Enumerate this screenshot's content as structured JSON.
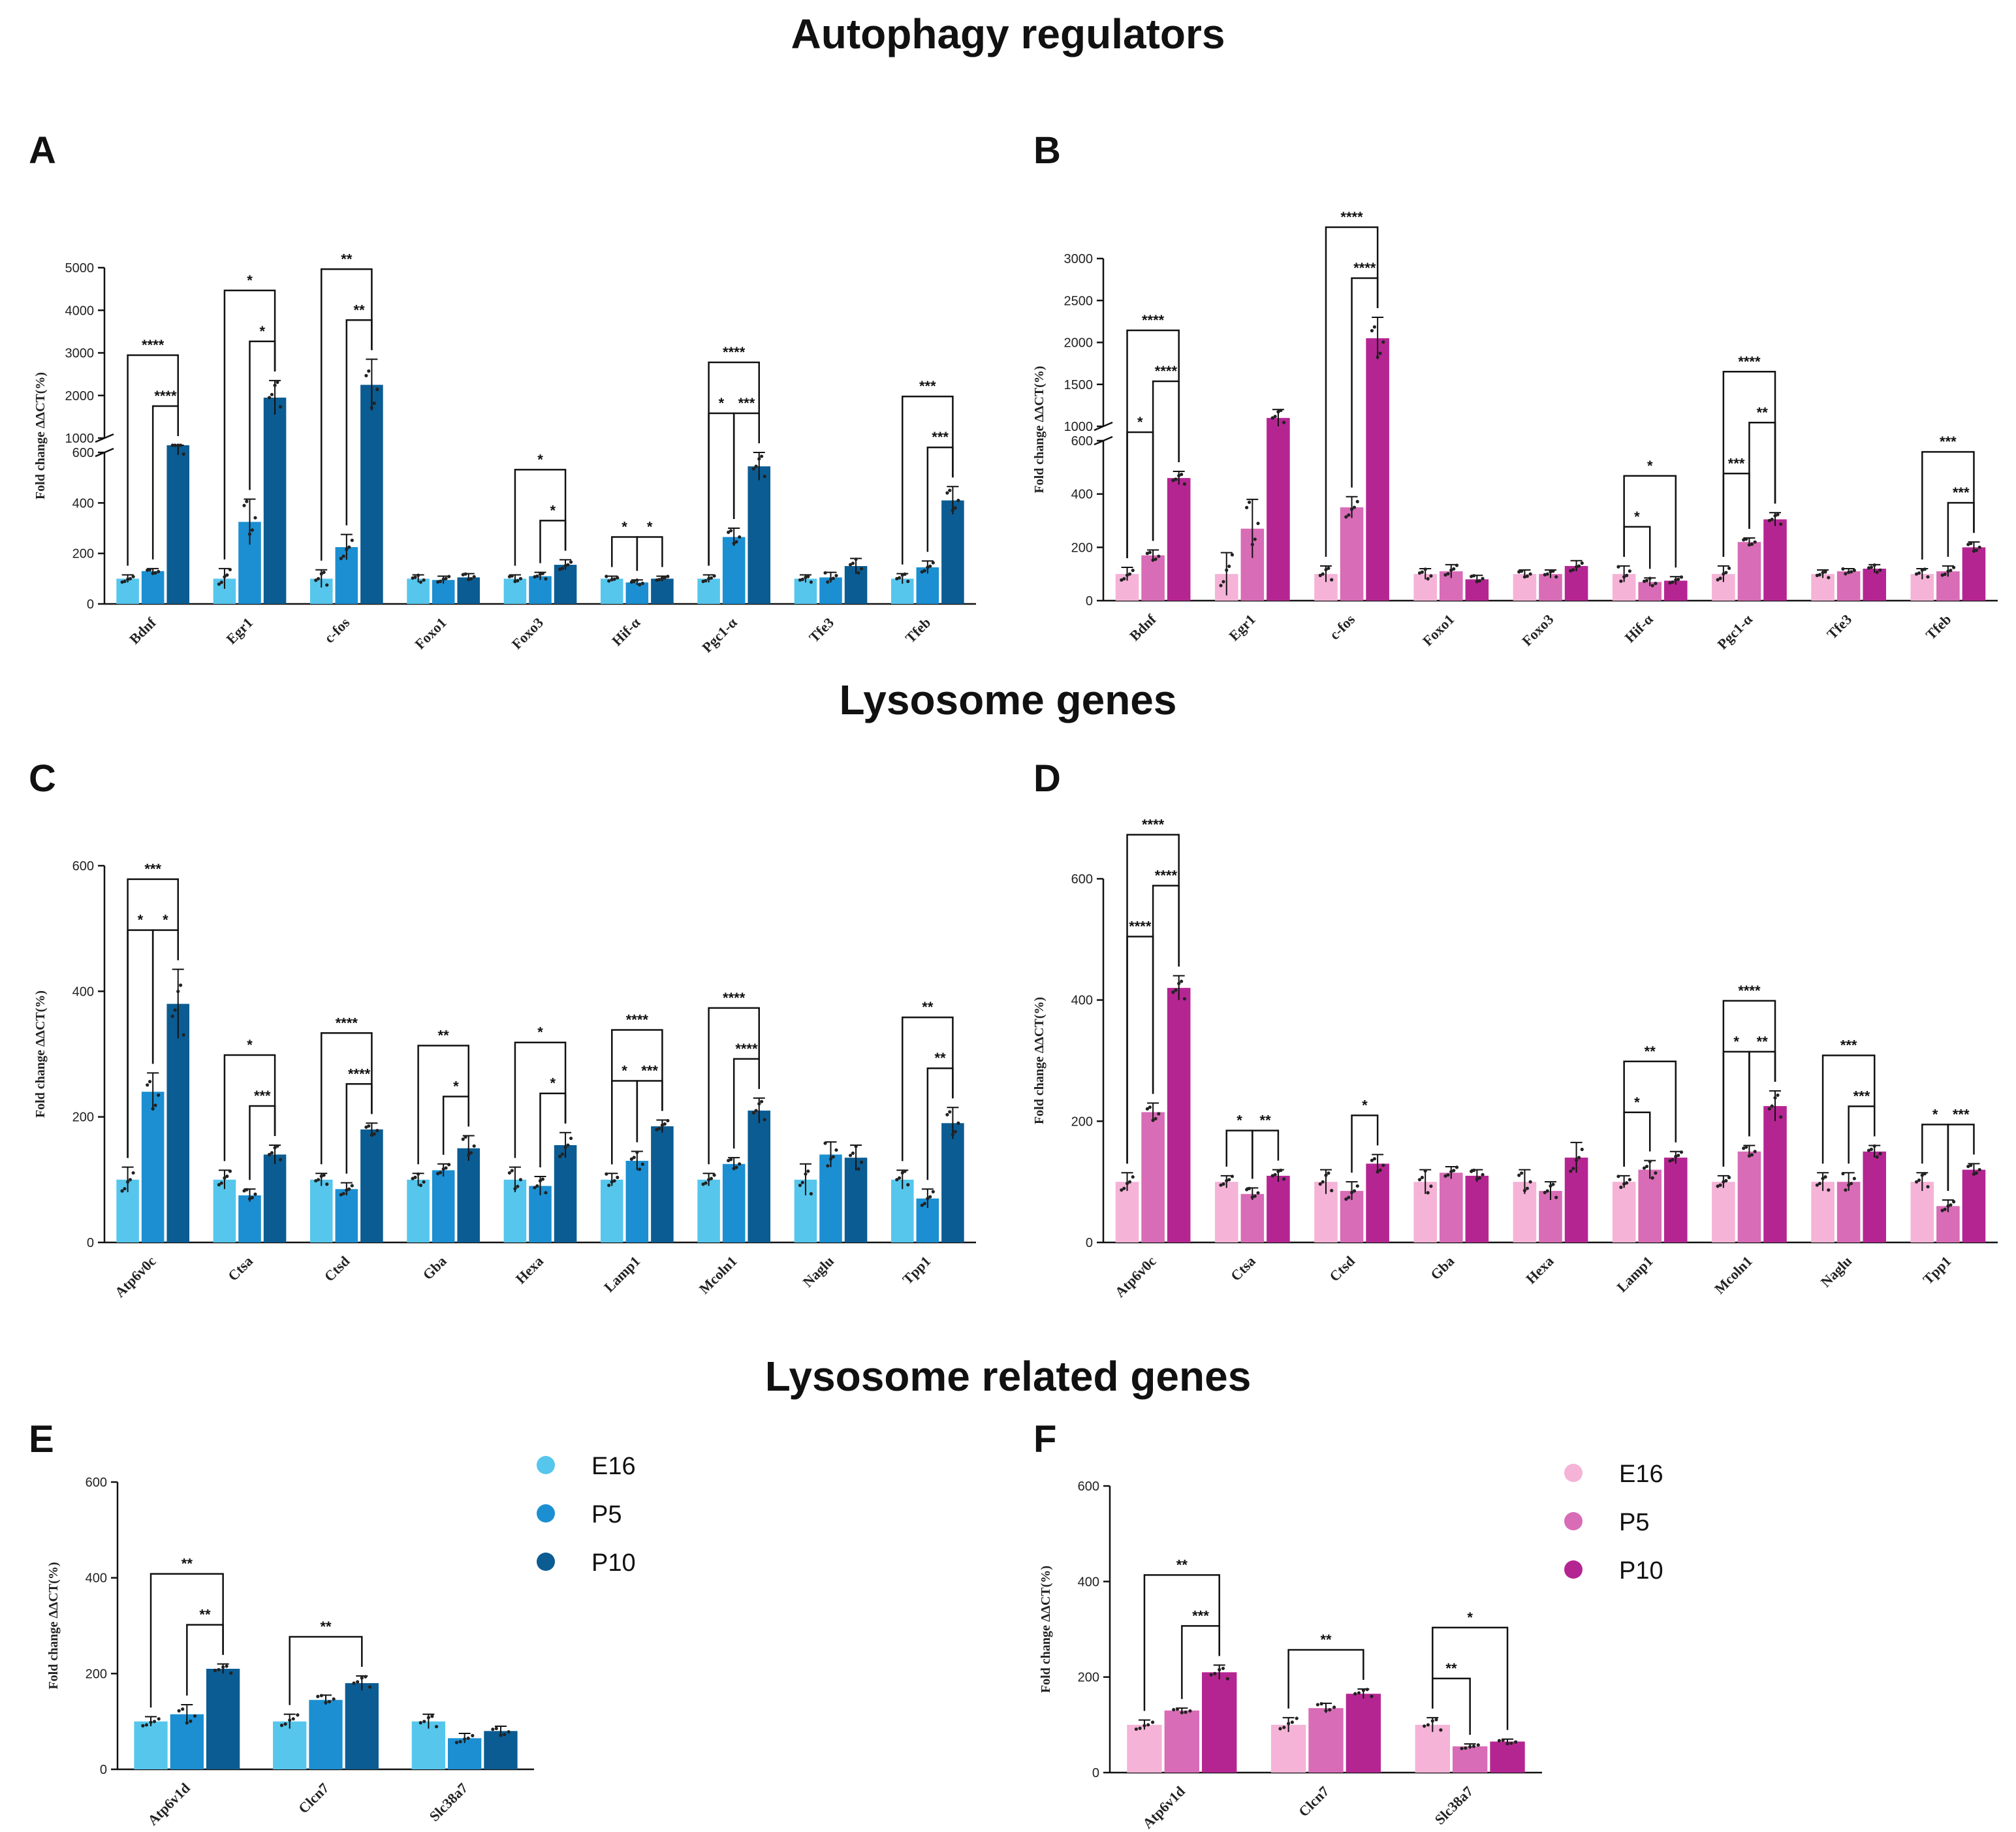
{
  "sections": [
    {
      "id": "sec-autophagy",
      "title": "Autophagy regulators"
    },
    {
      "id": "sec-lysosome",
      "title": "Lysosome genes"
    },
    {
      "id": "sec-related",
      "title": "Lysosome related genes"
    }
  ],
  "legends": [
    {
      "panel": "E",
      "items": [
        {
          "label": "E16",
          "color": "#56c6ec"
        },
        {
          "label": "P5",
          "color": "#1b8fd2"
        },
        {
          "label": "P10",
          "color": "#0b5c92"
        }
      ]
    },
    {
      "panel": "F",
      "items": [
        {
          "label": "E16",
          "color": "#f5b3d7"
        },
        {
          "label": "P5",
          "color": "#d86cb6"
        },
        {
          "label": "P10",
          "color": "#b52592"
        }
      ]
    }
  ],
  "chart_data": [
    {
      "panel": "A",
      "type": "bar",
      "ylabel": "Fold change ΔΔCT(%)",
      "groups": [
        "E16",
        "P5",
        "P10"
      ],
      "colors": [
        "#56c6ec",
        "#1b8fd2",
        "#0b5c92"
      ],
      "categories": [
        "Bdnf",
        "Egr1",
        "c-fos",
        "Foxo1",
        "Foxo3",
        "Hif-α",
        "Pgc1-α",
        "Tfe3",
        "Tfeb"
      ],
      "values": [
        [
          100,
          130,
          625
        ],
        [
          100,
          325,
          1950
        ],
        [
          100,
          225,
          2250
        ],
        [
          100,
          95,
          105
        ],
        [
          100,
          110,
          155
        ],
        [
          100,
          85,
          100
        ],
        [
          100,
          265,
          545
        ],
        [
          100,
          105,
          150
        ],
        [
          100,
          145,
          410
        ]
      ],
      "errors": [
        [
          15,
          10,
          35
        ],
        [
          40,
          90,
          400
        ],
        [
          35,
          50,
          600
        ],
        [
          15,
          15,
          15
        ],
        [
          15,
          15,
          20
        ],
        [
          10,
          10,
          10
        ],
        [
          15,
          35,
          55
        ],
        [
          15,
          20,
          30
        ],
        [
          20,
          25,
          55
        ]
      ],
      "y_break": {
        "lower_ticks": [
          0,
          200,
          400,
          600
        ],
        "upper_ticks": [
          1000,
          2000,
          3000,
          4000,
          5000
        ]
      },
      "significance": [
        {
          "cat": 0,
          "pairs": [
            [
              0,
              2,
              "****",
              1
            ],
            [
              1,
              2,
              "****",
              0
            ]
          ]
        },
        {
          "cat": 1,
          "pairs": [
            [
              0,
              2,
              "*",
              1
            ],
            [
              1,
              2,
              "*",
              0
            ]
          ]
        },
        {
          "cat": 2,
          "pairs": [
            [
              0,
              2,
              "**",
              1
            ],
            [
              1,
              2,
              "**",
              0
            ]
          ]
        },
        {
          "cat": 4,
          "pairs": [
            [
              0,
              2,
              "*",
              1
            ],
            [
              1,
              2,
              "*",
              0
            ]
          ]
        },
        {
          "cat": 5,
          "pairs": [
            [
              0,
              1,
              "*",
              0
            ],
            [
              1,
              2,
              "*",
              0
            ]
          ]
        },
        {
          "cat": 6,
          "pairs": [
            [
              0,
              2,
              "****",
              1
            ],
            [
              0,
              1,
              "*",
              0
            ],
            [
              1,
              2,
              "***",
              0
            ]
          ]
        },
        {
          "cat": 8,
          "pairs": [
            [
              0,
              2,
              "***",
              1
            ],
            [
              1,
              2,
              "***",
              0
            ]
          ]
        }
      ]
    },
    {
      "panel": "B",
      "type": "bar",
      "ylabel": "Fold change ΔΔCT(%)",
      "groups": [
        "E16",
        "P5",
        "P10"
      ],
      "colors": [
        "#f5b3d7",
        "#d86cb6",
        "#b52592"
      ],
      "categories": [
        "Bdnf",
        "Egr1",
        "c-fos",
        "Foxo1",
        "Foxo3",
        "Hif-α",
        "Pgc1-α",
        "Tfe3",
        "Tfeb"
      ],
      "values": [
        [
          100,
          170,
          460
        ],
        [
          100,
          270,
          1100
        ],
        [
          100,
          350,
          2050
        ],
        [
          100,
          110,
          80
        ],
        [
          100,
          100,
          130
        ],
        [
          100,
          70,
          75
        ],
        [
          100,
          220,
          305
        ],
        [
          100,
          110,
          120
        ],
        [
          100,
          110,
          200
        ]
      ],
      "errors": [
        [
          25,
          20,
          25
        ],
        [
          80,
          110,
          100
        ],
        [
          30,
          40,
          250
        ],
        [
          20,
          25,
          15
        ],
        [
          15,
          15,
          20
        ],
        [
          30,
          15,
          15
        ],
        [
          30,
          15,
          25
        ],
        [
          15,
          10,
          15
        ],
        [
          20,
          20,
          20
        ]
      ],
      "y_break": {
        "lower_ticks": [
          0,
          200,
          400,
          600
        ],
        "upper_ticks": [
          1000,
          1500,
          2000,
          2500,
          3000
        ]
      },
      "significance": [
        {
          "cat": 0,
          "pairs": [
            [
              0,
              2,
              "****",
              2
            ],
            [
              1,
              2,
              "****",
              1
            ],
            [
              0,
              1,
              "*",
              0
            ]
          ]
        },
        {
          "cat": 2,
          "pairs": [
            [
              0,
              2,
              "****",
              1
            ],
            [
              1,
              2,
              "****",
              0
            ]
          ]
        },
        {
          "cat": 5,
          "pairs": [
            [
              0,
              2,
              "*",
              1
            ],
            [
              0,
              1,
              "*",
              0
            ]
          ]
        },
        {
          "cat": 6,
          "pairs": [
            [
              0,
              2,
              "****",
              2
            ],
            [
              1,
              2,
              "**",
              1
            ],
            [
              0,
              1,
              "***",
              0
            ]
          ]
        },
        {
          "cat": 8,
          "pairs": [
            [
              0,
              2,
              "***",
              1
            ],
            [
              1,
              2,
              "***",
              0
            ]
          ]
        }
      ]
    },
    {
      "panel": "C",
      "type": "bar",
      "ylabel": "Fold change ΔΔCT(%)",
      "groups": [
        "E16",
        "P5",
        "P10"
      ],
      "colors": [
        "#56c6ec",
        "#1b8fd2",
        "#0b5c92"
      ],
      "categories": [
        "Atp6v0c",
        "Ctsa",
        "Ctsd",
        "Gba",
        "Hexa",
        "Lamp1",
        "Mcoln1",
        "Naglu",
        "Tpp1"
      ],
      "ylim": [
        0,
        600
      ],
      "yticks": [
        0,
        200,
        400,
        600
      ],
      "values": [
        [
          100,
          240,
          380
        ],
        [
          100,
          75,
          140
        ],
        [
          100,
          85,
          180
        ],
        [
          100,
          115,
          150
        ],
        [
          100,
          90,
          155
        ],
        [
          100,
          130,
          185
        ],
        [
          100,
          125,
          210
        ],
        [
          100,
          140,
          135
        ],
        [
          100,
          70,
          190
        ]
      ],
      "errors": [
        [
          20,
          30,
          55
        ],
        [
          15,
          10,
          15
        ],
        [
          10,
          10,
          10
        ],
        [
          10,
          10,
          20
        ],
        [
          20,
          15,
          20
        ],
        [
          10,
          15,
          10
        ],
        [
          10,
          10,
          20
        ],
        [
          25,
          20,
          20
        ],
        [
          15,
          15,
          25
        ]
      ],
      "significance": [
        {
          "cat": 0,
          "pairs": [
            [
              0,
              2,
              "***",
              1
            ],
            [
              0,
              1,
              "*",
              0
            ],
            [
              1,
              2,
              "*",
              0
            ]
          ]
        },
        {
          "cat": 1,
          "pairs": [
            [
              0,
              2,
              "*",
              1
            ],
            [
              1,
              2,
              "***",
              0
            ]
          ]
        },
        {
          "cat": 2,
          "pairs": [
            [
              0,
              2,
              "****",
              1
            ],
            [
              1,
              2,
              "****",
              0
            ]
          ]
        },
        {
          "cat": 3,
          "pairs": [
            [
              0,
              2,
              "**",
              1
            ],
            [
              1,
              2,
              "*",
              0
            ]
          ]
        },
        {
          "cat": 4,
          "pairs": [
            [
              0,
              2,
              "*",
              1
            ],
            [
              1,
              2,
              "*",
              0
            ]
          ]
        },
        {
          "cat": 5,
          "pairs": [
            [
              0,
              2,
              "****",
              1
            ],
            [
              0,
              1,
              "*",
              0
            ],
            [
              1,
              2,
              "***",
              0
            ]
          ]
        },
        {
          "cat": 6,
          "pairs": [
            [
              0,
              2,
              "****",
              1
            ],
            [
              1,
              2,
              "****",
              0
            ]
          ]
        },
        {
          "cat": 8,
          "pairs": [
            [
              0,
              2,
              "**",
              1
            ],
            [
              1,
              2,
              "**",
              0
            ]
          ]
        }
      ]
    },
    {
      "panel": "D",
      "type": "bar",
      "ylabel": "Fold change ΔΔCT(%)",
      "groups": [
        "E16",
        "P5",
        "P10"
      ],
      "colors": [
        "#f5b3d7",
        "#d86cb6",
        "#b52592"
      ],
      "categories": [
        "Atp6v0c",
        "Ctsa",
        "Ctsd",
        "Gba",
        "Hexa",
        "Lamp1",
        "Mcoln1",
        "Naglu",
        "Tpp1"
      ],
      "ylim": [
        0,
        600
      ],
      "yticks": [
        0,
        200,
        400,
        600
      ],
      "values": [
        [
          100,
          215,
          420
        ],
        [
          100,
          80,
          110
        ],
        [
          100,
          85,
          130
        ],
        [
          100,
          115,
          110
        ],
        [
          100,
          85,
          140
        ],
        [
          100,
          120,
          140
        ],
        [
          100,
          150,
          225
        ],
        [
          100,
          100,
          150
        ],
        [
          100,
          60,
          120
        ]
      ],
      "errors": [
        [
          15,
          15,
          20
        ],
        [
          10,
          10,
          10
        ],
        [
          20,
          15,
          15
        ],
        [
          20,
          10,
          10
        ],
        [
          20,
          15,
          25
        ],
        [
          10,
          15,
          10
        ],
        [
          10,
          10,
          25
        ],
        [
          15,
          15,
          10
        ],
        [
          15,
          10,
          10
        ]
      ],
      "significance": [
        {
          "cat": 0,
          "pairs": [
            [
              0,
              2,
              "****",
              2
            ],
            [
              1,
              2,
              "****",
              1
            ],
            [
              0,
              1,
              "****",
              0
            ]
          ]
        },
        {
          "cat": 1,
          "pairs": [
            [
              0,
              1,
              "*",
              0
            ],
            [
              1,
              2,
              "**",
              0
            ]
          ]
        },
        {
          "cat": 2,
          "pairs": [
            [
              1,
              2,
              "*",
              0
            ]
          ]
        },
        {
          "cat": 5,
          "pairs": [
            [
              0,
              2,
              "**",
              1
            ],
            [
              0,
              1,
              "*",
              0
            ]
          ]
        },
        {
          "cat": 6,
          "pairs": [
            [
              0,
              2,
              "****",
              1
            ],
            [
              0,
              1,
              "*",
              0
            ],
            [
              1,
              2,
              "**",
              0
            ]
          ]
        },
        {
          "cat": 7,
          "pairs": [
            [
              0,
              2,
              "***",
              1
            ],
            [
              1,
              2,
              "***",
              0
            ]
          ]
        },
        {
          "cat": 8,
          "pairs": [
            [
              0,
              1,
              "*",
              0
            ],
            [
              1,
              2,
              "***",
              0
            ]
          ]
        }
      ]
    },
    {
      "panel": "E",
      "type": "bar",
      "ylabel": "Fold change ΔΔCT(%)",
      "groups": [
        "E16",
        "P5",
        "P10"
      ],
      "colors": [
        "#56c6ec",
        "#1b8fd2",
        "#0b5c92"
      ],
      "categories": [
        "Atp6v1d",
        "Clcn7",
        "Slc38a7"
      ],
      "ylim": [
        0,
        600
      ],
      "yticks": [
        0,
        200,
        400,
        600
      ],
      "values": [
        [
          100,
          115,
          210
        ],
        [
          100,
          145,
          180
        ],
        [
          100,
          65,
          80
        ]
      ],
      "errors": [
        [
          10,
          20,
          10
        ],
        [
          15,
          10,
          15
        ],
        [
          15,
          10,
          10
        ]
      ],
      "significance": [
        {
          "cat": 0,
          "pairs": [
            [
              0,
              2,
              "**",
              1
            ],
            [
              1,
              2,
              "**",
              0
            ]
          ]
        },
        {
          "cat": 1,
          "pairs": [
            [
              0,
              2,
              "**",
              0
            ]
          ]
        }
      ]
    },
    {
      "panel": "F",
      "type": "bar",
      "ylabel": "Fold change ΔΔCT(%)",
      "groups": [
        "E16",
        "P5",
        "P10"
      ],
      "colors": [
        "#f5b3d7",
        "#d86cb6",
        "#b52592"
      ],
      "categories": [
        "Atp6v1d",
        "Clcn7",
        "Slc38a7"
      ],
      "ylim": [
        0,
        600
      ],
      "yticks": [
        0,
        200,
        400,
        600
      ],
      "values": [
        [
          100,
          130,
          210
        ],
        [
          100,
          135,
          165
        ],
        [
          100,
          55,
          65
        ]
      ],
      "errors": [
        [
          10,
          5,
          15
        ],
        [
          15,
          10,
          10
        ],
        [
          15,
          5,
          5
        ]
      ],
      "significance": [
        {
          "cat": 0,
          "pairs": [
            [
              0,
              2,
              "**",
              1
            ],
            [
              1,
              2,
              "***",
              0
            ]
          ]
        },
        {
          "cat": 1,
          "pairs": [
            [
              0,
              2,
              "**",
              0
            ]
          ]
        },
        {
          "cat": 2,
          "pairs": [
            [
              0,
              2,
              "*",
              1
            ],
            [
              0,
              1,
              "**",
              0
            ]
          ]
        }
      ]
    }
  ]
}
